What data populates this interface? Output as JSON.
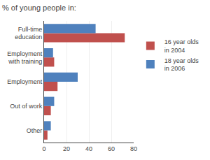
{
  "chart_data": {
    "type": "bar",
    "orientation": "horizontal",
    "title": "% of young people in:",
    "categories": [
      "Full-time\neducation",
      "Employment\nwith training",
      "Employment",
      "Out of work",
      "Other"
    ],
    "series": [
      {
        "name": "16 year olds\nin 2004",
        "color": "#c0504d",
        "values": [
          72,
          9,
          12,
          6,
          3
        ]
      },
      {
        "name": "18 year olds\nin 2006",
        "color": "#4f81bd",
        "values": [
          46,
          8,
          30,
          9,
          6
        ]
      }
    ],
    "xlim": [
      0,
      80
    ],
    "xticks": [
      0,
      20,
      40,
      60,
      80
    ],
    "grid": true,
    "legend": "right"
  }
}
